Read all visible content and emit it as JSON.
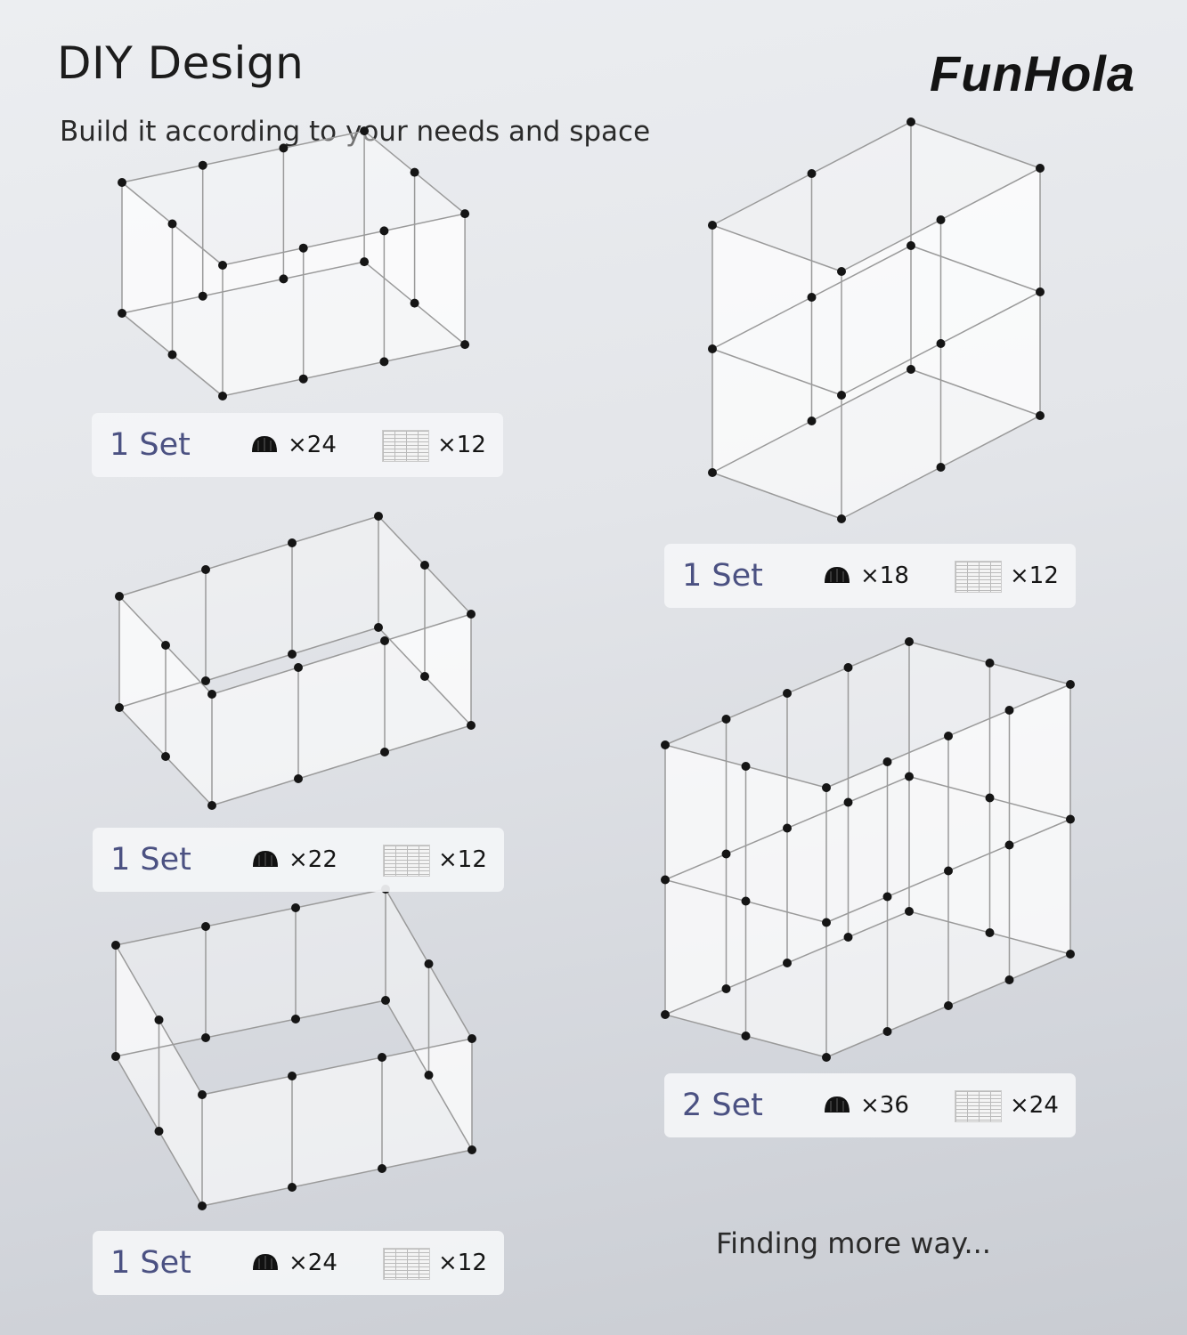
{
  "header": {
    "title": "DIY Design",
    "subtitle": "Build it according to your needs and space",
    "brand": "FunHola"
  },
  "configurations": [
    {
      "sets": "1 Set",
      "connectors": "×24",
      "panels": "×12"
    },
    {
      "sets": "1 Set",
      "connectors": "×18",
      "panels": "×12"
    },
    {
      "sets": "1 Set",
      "connectors": "×22",
      "panels": "×12"
    },
    {
      "sets": "2 Set",
      "connectors": "×36",
      "panels": "×24"
    },
    {
      "sets": "1 Set",
      "connectors": "×24",
      "panels": "×12"
    }
  ],
  "footer": {
    "more_text": "Finding more way..."
  },
  "icons": {
    "connector": "connector-dome-icon",
    "panel": "grid-panel-icon"
  },
  "colors": {
    "set_label": "#4b5182",
    "connector": "#111111"
  }
}
